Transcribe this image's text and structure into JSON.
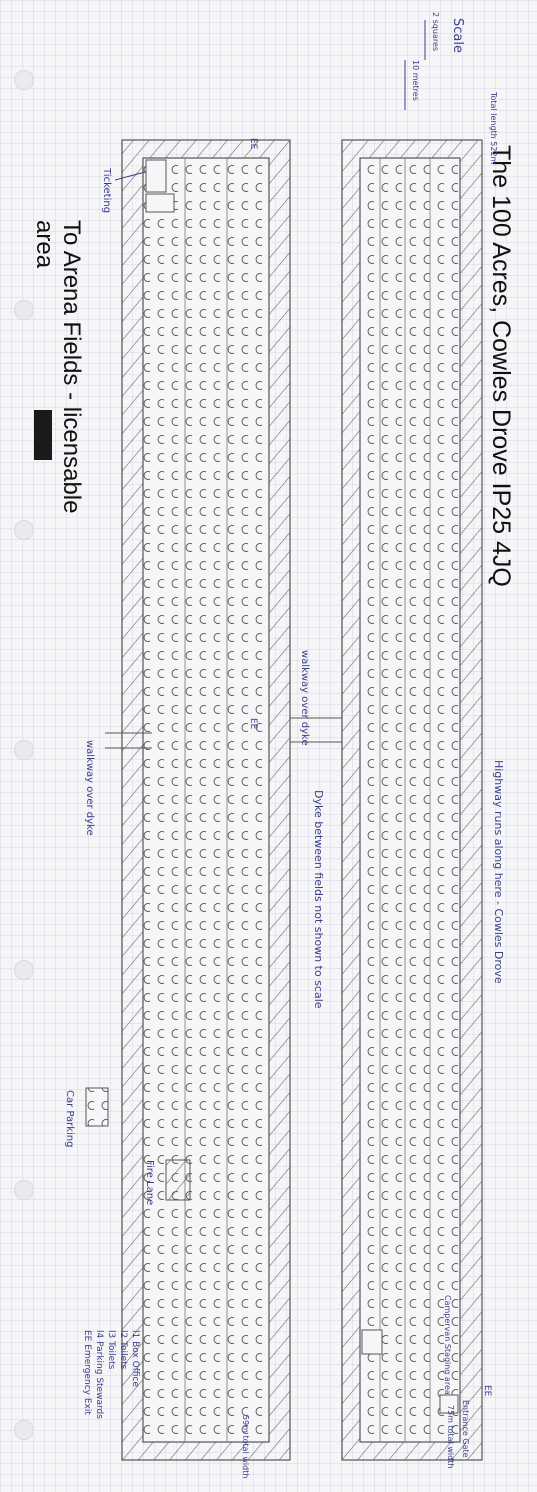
{
  "title": "The 100 Acres, Cowles Drove IP25 4JQ",
  "subtitle_line1": "To Arena Fields - licensable",
  "subtitle_line2": "area",
  "annotations": {
    "scale": "Scale",
    "scale_small": "2 squares",
    "scale_big": "10 metres",
    "total_length": "Total length 522m",
    "ticketing": "Ticketing",
    "highway": "Highway runs along here - Cowles Drove",
    "walkway_top": "walkway over dyke",
    "walkway_left": "walkway over dyke",
    "dyke_note": "Dyke between fields not shown to scale",
    "campervan": "Campervan Staging area",
    "width_right": "75m total width",
    "width_left": "59m total width",
    "entrance": "Entrance Gate",
    "ee": "EE",
    "car_parking": "Car Parking",
    "fire_lane": "Fire Lane",
    "legend_1": "l1 Box Office",
    "legend_2": "l2 Toilets",
    "legend_3": "l3 Toilets",
    "legend_4": "l4 Parking Stewards",
    "legend_5": "EE Emergency Exit"
  },
  "colors": {
    "ink": "#3a3f8a",
    "pencil": "#444444",
    "hatch": "#666666"
  }
}
